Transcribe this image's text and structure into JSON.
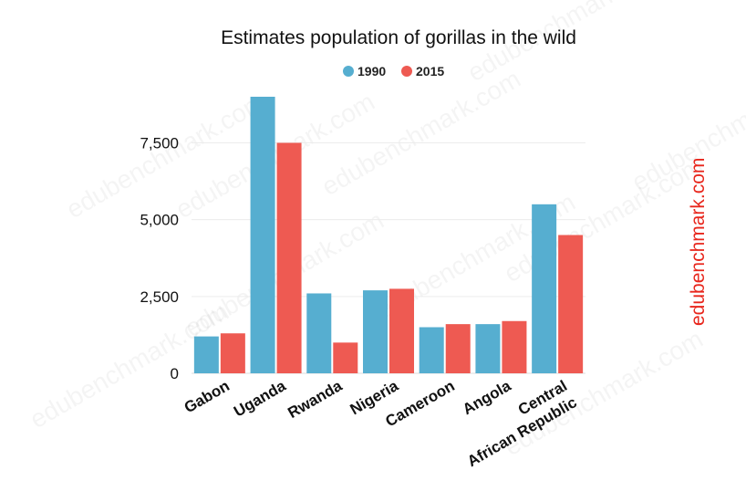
{
  "chart_data": {
    "type": "bar",
    "title": "Estimates population of gorillas in the wild",
    "xlabel": "",
    "ylabel": "",
    "categories": [
      "Gabon",
      "Uganda",
      "Rwanda",
      "Nigeria",
      "Cameroon",
      "Angola",
      [
        "Central",
        "African Republic"
      ]
    ],
    "series": [
      {
        "name": "1990",
        "color": "#56aed0",
        "values": [
          1200,
          9000,
          2600,
          2700,
          1500,
          1600,
          5500
        ]
      },
      {
        "name": "2015",
        "color": "#ee5a52",
        "values": [
          1300,
          7500,
          1000,
          2750,
          1600,
          1700,
          4500
        ]
      }
    ],
    "ylim": [
      0,
      9000
    ],
    "yticks": [
      0,
      2500,
      5000,
      7500
    ],
    "ytick_labels": [
      "0",
      "2,500",
      "5,000",
      "7,500"
    ],
    "grid": true,
    "legend_position": "top-center"
  },
  "watermark": {
    "text": "edubenchmark.com",
    "color": "#e8261c"
  }
}
